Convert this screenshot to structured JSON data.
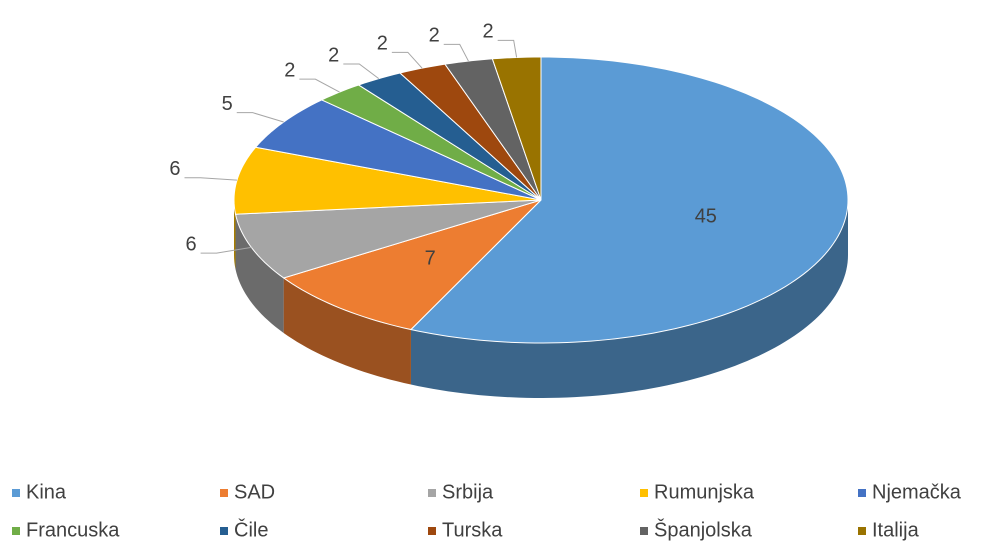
{
  "chart_data": {
    "type": "pie",
    "categories": [
      "Kina",
      "SAD",
      "Srbija",
      "Rumunjska",
      "Njemačka",
      "Francuska",
      "Čile",
      "Turska",
      "Španjolska",
      "Italija"
    ],
    "values": [
      45,
      7,
      6,
      6,
      5,
      2,
      2,
      2,
      2,
      2
    ],
    "colors": [
      "#5b9bd5",
      "#ed7d31",
      "#a5a5a5",
      "#ffc000",
      "#4472c4",
      "#70ad47",
      "#255e91",
      "#9e480e",
      "#636363",
      "#997300"
    ],
    "legend": "bottom"
  }
}
